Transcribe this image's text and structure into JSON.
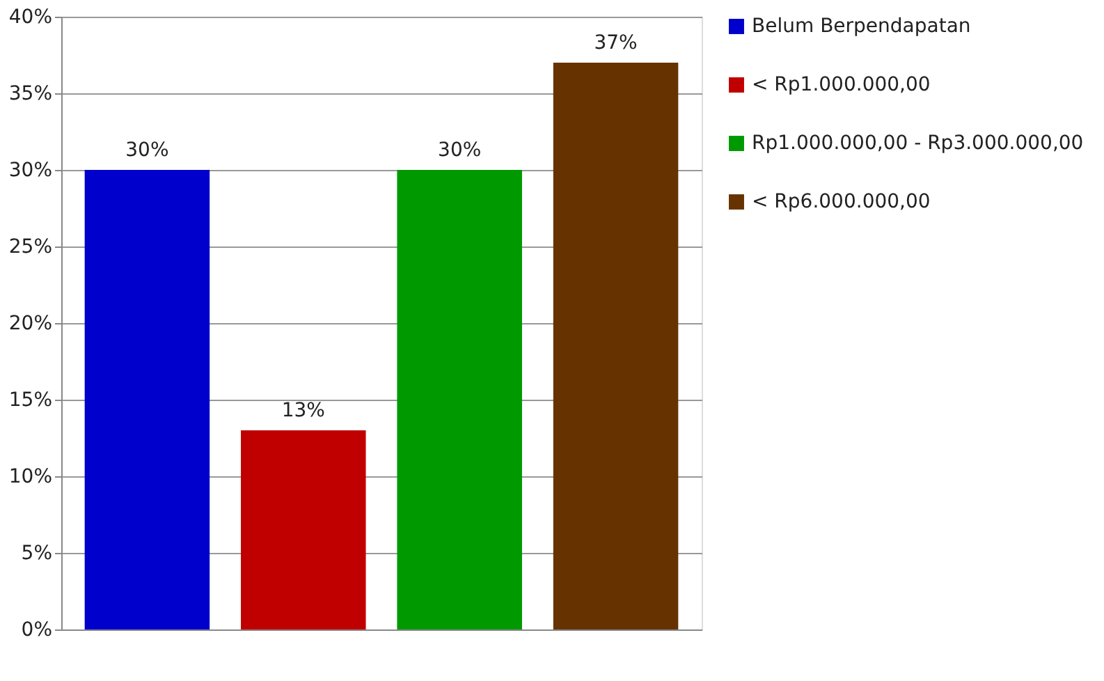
{
  "chart_data": {
    "type": "bar",
    "categories": [
      null,
      null,
      null,
      null
    ],
    "series": [
      {
        "name": "Belum Berpendapatan",
        "color": "#0000cc",
        "values": [
          30,
          null,
          null,
          null
        ],
        "value_labels": [
          "30%",
          null,
          null,
          null
        ]
      },
      {
        "name": "< Rp1.000.000,00",
        "color": "#c00000",
        "values": [
          null,
          13,
          null,
          null
        ],
        "value_labels": [
          null,
          "13%",
          null,
          null
        ]
      },
      {
        "name": "Rp1.000.000,00 - Rp3.000.000,00",
        "color": "#009900",
        "values": [
          null,
          null,
          30,
          null
        ],
        "value_labels": [
          null,
          null,
          "30%",
          null
        ]
      },
      {
        "name": "< Rp6.000.000,00",
        "color": "#663300",
        "values": [
          null,
          null,
          null,
          37
        ],
        "value_labels": [
          null,
          null,
          null,
          "37%"
        ]
      }
    ],
    "ylim": [
      0,
      40
    ],
    "yticks": [
      {
        "value": 0,
        "label": "0%"
      },
      {
        "value": 5,
        "label": "5%"
      },
      {
        "value": 10,
        "label": "10%"
      },
      {
        "value": 15,
        "label": "15%"
      },
      {
        "value": 20,
        "label": "20%"
      },
      {
        "value": 25,
        "label": "25%"
      },
      {
        "value": 30,
        "label": "30%"
      },
      {
        "value": 35,
        "label": "35%"
      },
      {
        "value": 40,
        "label": "40%"
      }
    ],
    "grid": "y",
    "legend": "right"
  }
}
